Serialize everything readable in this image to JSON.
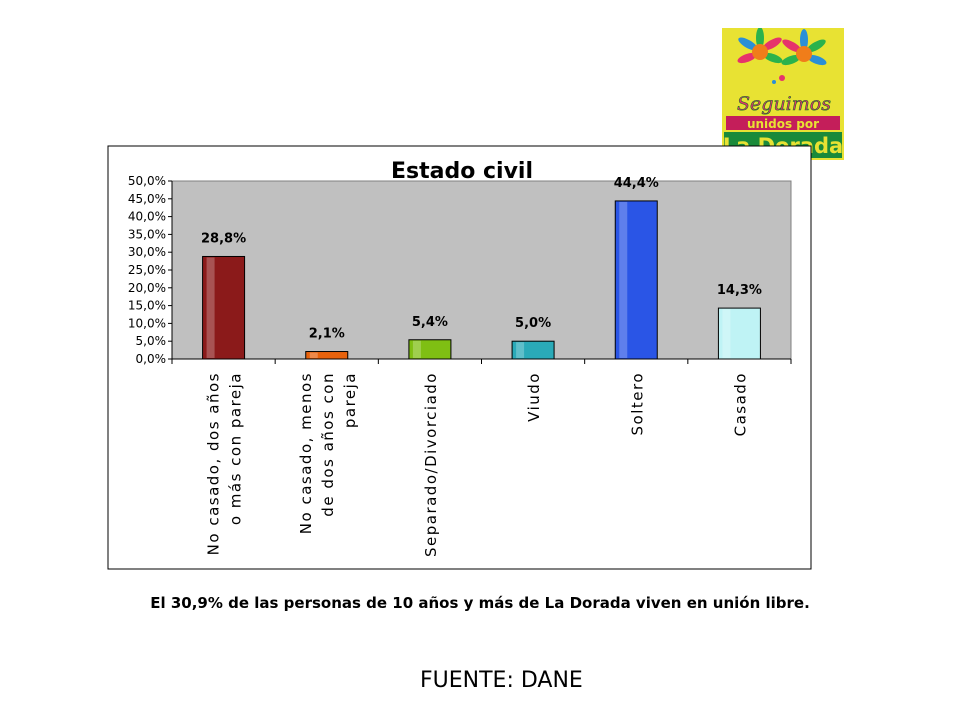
{
  "logo": {
    "line1": "Seguimos",
    "line2": "unidos por",
    "line3": "La Dorada",
    "icon": "flower-logo-icon"
  },
  "chart_data": {
    "type": "bar",
    "title": "Estado civil",
    "categories": [
      [
        "No casado, dos años",
        "o más con pareja"
      ],
      [
        "No casado, menos",
        "de dos años con",
        "pareja"
      ],
      [
        "Separado/Divorciado"
      ],
      [
        "Viudo"
      ],
      [
        "Soltero"
      ],
      [
        "Casado"
      ]
    ],
    "values": [
      28.8,
      2.1,
      5.4,
      5.0,
      44.4,
      14.3
    ],
    "data_labels": [
      "28,8%",
      "2,1%",
      "5,4%",
      "5,0%",
      "44,4%",
      "14,3%"
    ],
    "bar_colors": [
      "#8b1a1a",
      "#e8620c",
      "#7fbf13",
      "#2aaab8",
      "#2a55e6",
      "#bff3f5"
    ],
    "yticks": [
      "0,0%",
      "5,0%",
      "10,0%",
      "15,0%",
      "20,0%",
      "25,0%",
      "30,0%",
      "35,0%",
      "40,0%",
      "45,0%",
      "50,0%"
    ],
    "ylim": [
      0,
      50
    ],
    "xlabel": "",
    "ylabel": "",
    "plot_background": "#c0c0c0",
    "grid": false,
    "legend": "none"
  },
  "caption": "El 30,9% de las personas de 10 años y más de La Dorada viven en unión libre.",
  "source": "FUENTE: DANE"
}
